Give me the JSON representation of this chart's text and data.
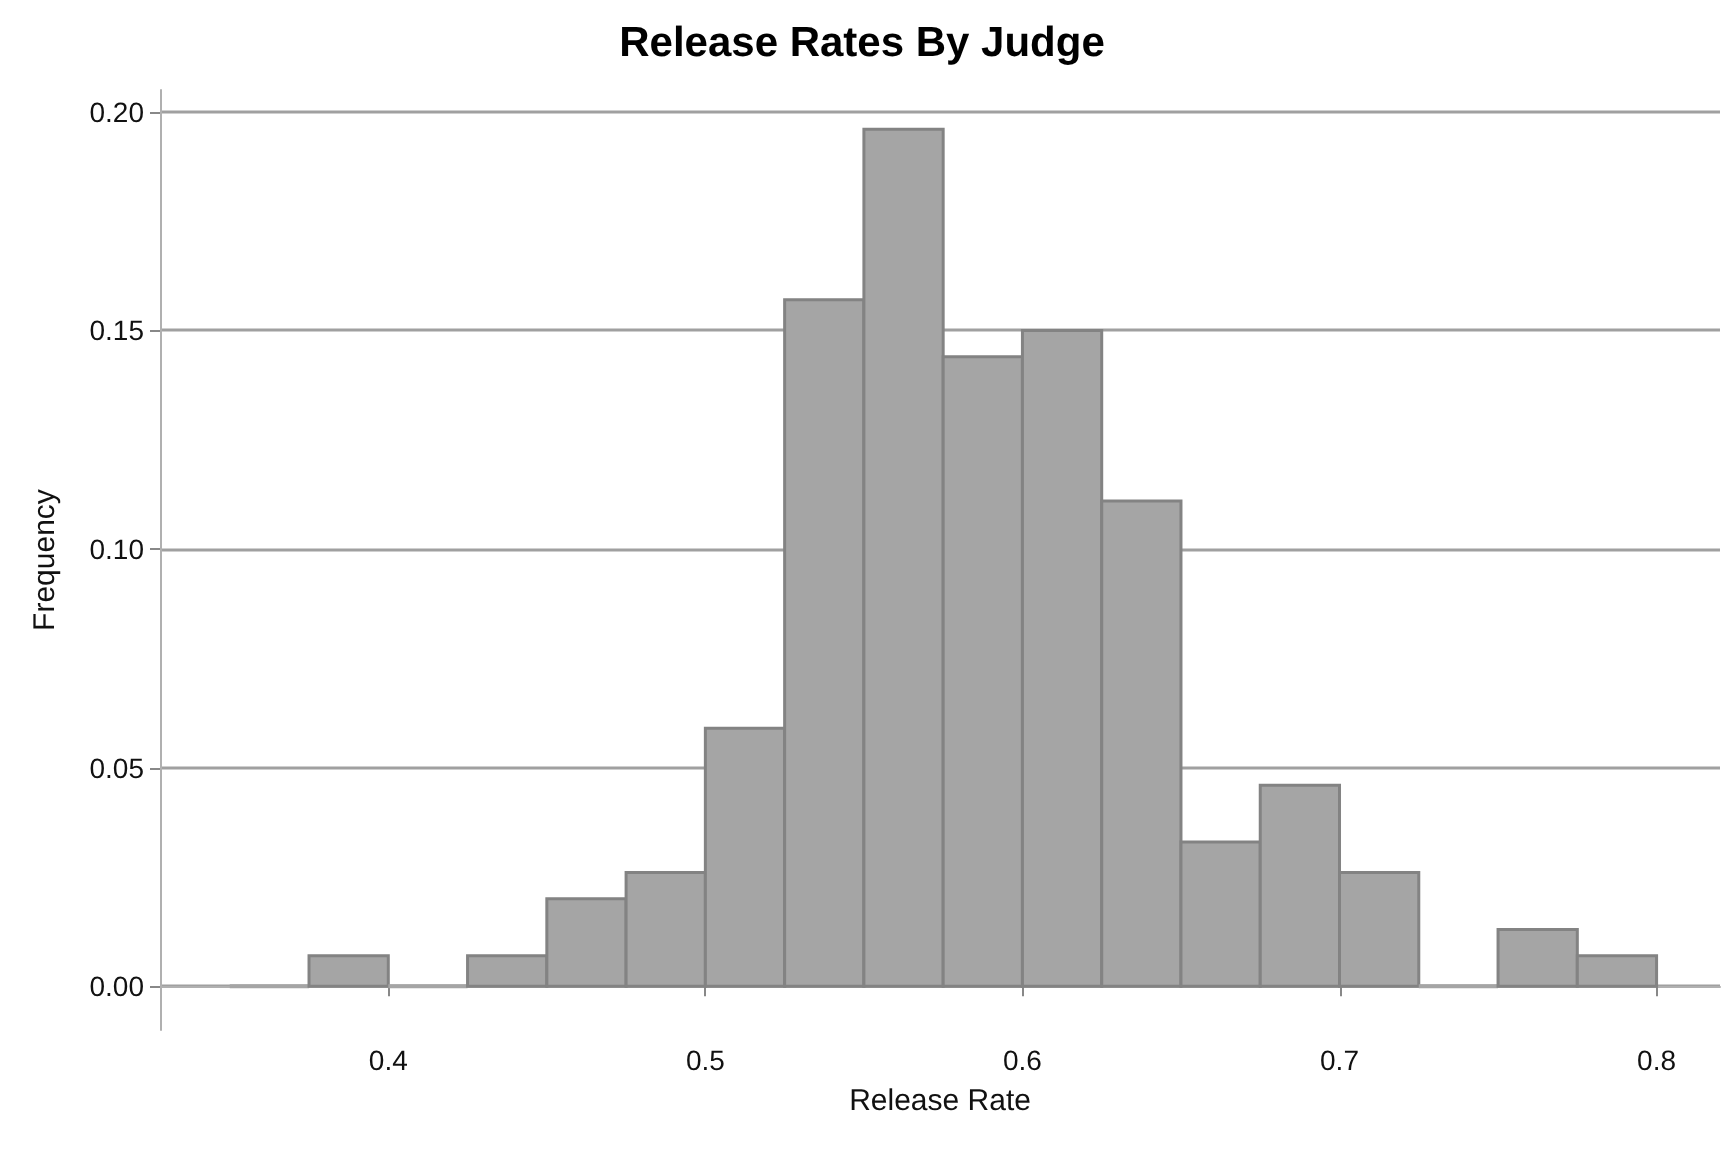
{
  "chart_data": {
    "type": "histogram",
    "title": "Release Rates By Judge",
    "xlabel": "Release Rate",
    "ylabel": "Frequency",
    "bins": [
      0.35,
      0.375,
      0.4,
      0.425,
      0.45,
      0.475,
      0.5,
      0.525,
      0.55,
      0.575,
      0.6,
      0.625,
      0.65,
      0.675,
      0.7,
      0.725,
      0.75,
      0.775,
      0.8
    ],
    "values": [
      0,
      0.007,
      0,
      0.007,
      0.02,
      0.026,
      0.059,
      0.157,
      0.196,
      0.144,
      0.15,
      0.111,
      0.033,
      0.046,
      0.026,
      0,
      0.013,
      0.007
    ],
    "color": "#a5a5a5",
    "xlim": [
      0.328,
      0.82
    ],
    "xticks": [
      {
        "value": 0.4,
        "label": "0.4"
      },
      {
        "value": 0.5,
        "label": "0.5"
      },
      {
        "value": 0.6,
        "label": "0.6"
      },
      {
        "value": 0.7,
        "label": "0.7"
      },
      {
        "value": 0.8,
        "label": "0.8"
      }
    ],
    "ylim": [
      -0.01,
      0.205
    ],
    "yticks": [
      {
        "value": 0,
        "label": "0.00"
      },
      {
        "value": 0.05,
        "label": "0.05"
      },
      {
        "value": 0.1,
        "label": "0.10"
      },
      {
        "value": 0.15,
        "label": "0.15"
      },
      {
        "value": 0.2,
        "label": "0.20"
      }
    ],
    "grid": "y"
  }
}
